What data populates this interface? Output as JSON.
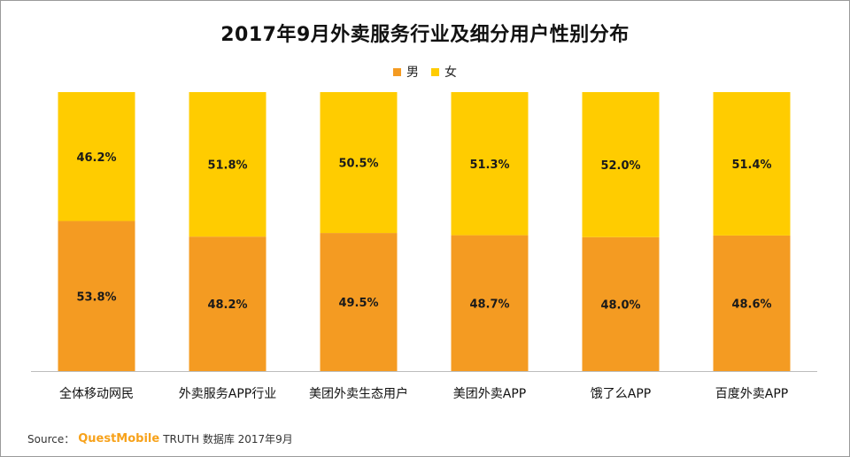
{
  "title": "2017年9月外卖服务行业及细分用户性别分布",
  "legend": {
    "items": [
      {
        "label": "男",
        "color": "#f49b22"
      },
      {
        "label": "女",
        "color": "#ffcc00"
      }
    ]
  },
  "source": {
    "prefix": "Source：",
    "brand": "QuestMobile",
    "rest": "TRUTH 数据库 2017年9月"
  },
  "chart_data": {
    "type": "bar",
    "stacked": true,
    "percent": true,
    "title": "2017年9月外卖服务行业及细分用户性别分布",
    "categories": [
      "全体移动网民",
      "外卖服务APP行业",
      "美团外卖生态用户",
      "美团外卖APP",
      "饿了么APP",
      "百度外卖APP"
    ],
    "series": [
      {
        "name": "男",
        "color": "#f49b22",
        "values": [
          53.8,
          48.2,
          49.5,
          48.7,
          48.0,
          48.6
        ],
        "labels": [
          "53.8%",
          "48.2%",
          "49.5%",
          "48.7%",
          "48.0%",
          "48.6%"
        ]
      },
      {
        "name": "女",
        "color": "#ffcc00",
        "values": [
          46.2,
          51.8,
          50.5,
          51.3,
          52.0,
          51.4
        ],
        "labels": [
          "46.2%",
          "51.8%",
          "50.5%",
          "51.3%",
          "52.0%",
          "51.4%"
        ]
      }
    ],
    "ylim": [
      0,
      100
    ],
    "grid": false,
    "legend_position": "top-center",
    "xlabel": "",
    "ylabel": ""
  }
}
